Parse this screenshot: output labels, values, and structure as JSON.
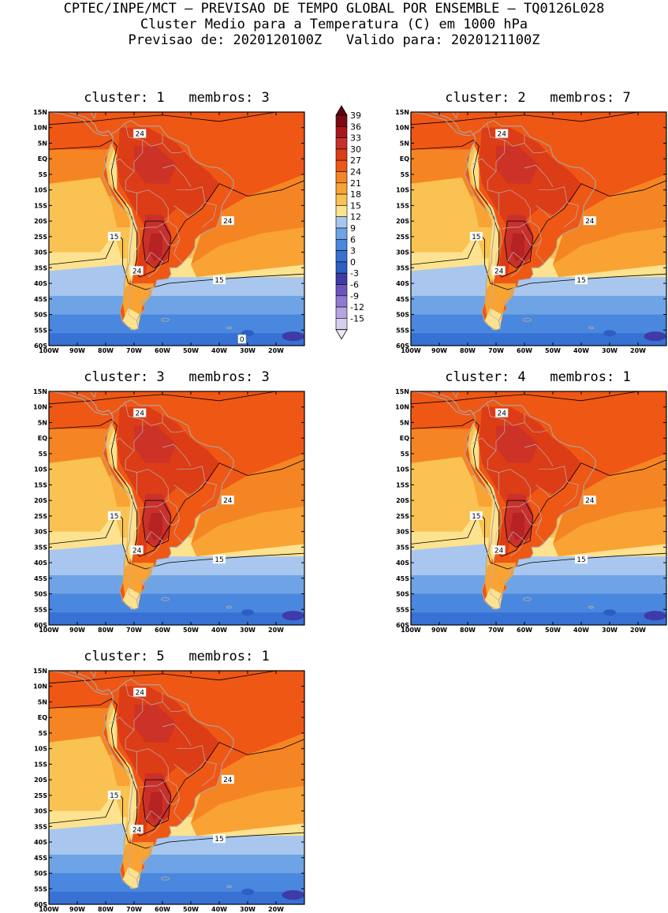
{
  "header": {
    "line1": "CPTEC/INPE/MCT – PREVISAO DE TEMPO GLOBAL POR ENSEMBLE – TQ0126L028",
    "line2": "Cluster Medio para a Temperatura (C) em 1000 hPa",
    "line3": "Previsao de: 2020120100Z   Valido para: 2020121100Z"
  },
  "axes": {
    "lat_labels": [
      "15N",
      "10N",
      "5N",
      "EQ",
      "5S",
      "10S",
      "15S",
      "20S",
      "25S",
      "30S",
      "35S",
      "40S",
      "45S",
      "50S",
      "55S",
      "60S"
    ],
    "lon_labels": [
      "100W",
      "90W",
      "80W",
      "70W",
      "60W",
      "50W",
      "40W",
      "30W",
      "20W"
    ],
    "lat_range": [
      -60,
      15
    ],
    "lon_range": [
      -100,
      -10
    ]
  },
  "colorbar": {
    "labels": [
      "39",
      "36",
      "33",
      "30",
      "27",
      "24",
      "21",
      "18",
      "15",
      "12",
      "9",
      "6",
      "3",
      "0",
      "-3",
      "-6",
      "-9",
      "-12",
      "-15"
    ],
    "colors": [
      "#7a0a14",
      "#a8171c",
      "#c9302c",
      "#dc3d16",
      "#ef5714",
      "#f58523",
      "#f8a334",
      "#f9c252",
      "#fde28f",
      "#a9c7ee",
      "#6ea4e6",
      "#4a87de",
      "#3771d3",
      "#2c5ec4",
      "#3e3aa8",
      "#6b54c0",
      "#8f7ad3",
      "#b5a4e2",
      "#d7cef0"
    ],
    "top_color": "#5c0810",
    "bottom_color": "#ece8f7"
  },
  "clusters": [
    {
      "title": "cluster: 1   membros: 3",
      "labels": {
        "a": "24",
        "b": "24",
        "c": "15",
        "d": "24",
        "e": "15",
        "f": "0"
      }
    },
    {
      "title": "cluster: 2   membros: 7",
      "labels": {
        "a": "24",
        "b": "24",
        "c": "15",
        "d": "24",
        "e": "15"
      }
    },
    {
      "title": "cluster: 3   membros: 3",
      "labels": {
        "a": "24",
        "b": "24",
        "c": "15",
        "d": "24",
        "e": "15"
      }
    },
    {
      "title": "cluster: 4   membros: 1",
      "labels": {
        "a": "24",
        "b": "24",
        "c": "15",
        "d": "24",
        "e": "15"
      }
    },
    {
      "title": "cluster: 5   membros: 1",
      "labels": {
        "a": "24",
        "b": "24",
        "c": "15",
        "d": "24",
        "e": "15"
      }
    }
  ]
}
